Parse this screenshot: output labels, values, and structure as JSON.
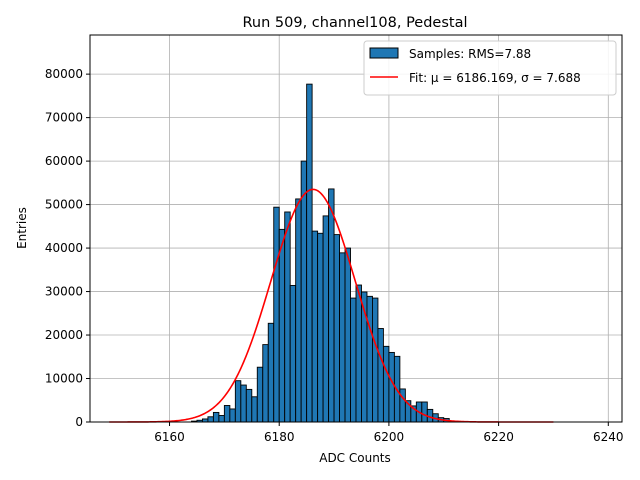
{
  "chart_data": {
    "type": "bar",
    "title": "Run 509, channel108, Pedestal",
    "xlabel": "ADC Counts",
    "ylabel": "Entries",
    "xlim": [
      6145.5,
      6242.5
    ],
    "ylim": [
      0,
      89000
    ],
    "xticks": [
      6160,
      6180,
      6200,
      6220,
      6240
    ],
    "yticks": [
      0,
      10000,
      20000,
      30000,
      40000,
      50000,
      60000,
      70000,
      80000
    ],
    "grid": true,
    "legend_position": "top-right",
    "series": [
      {
        "name": "Samples: RMS=7.88",
        "kind": "histogram",
        "color": "#1f77b4",
        "edge_color": "#000000",
        "bin_width": 1,
        "bin_starts": [
          6164,
          6165,
          6166,
          6167,
          6168,
          6169,
          6170,
          6171,
          6172,
          6173,
          6174,
          6175,
          6176,
          6177,
          6178,
          6179,
          6180,
          6181,
          6182,
          6183,
          6184,
          6185,
          6186,
          6187,
          6188,
          6189,
          6190,
          6191,
          6192,
          6193,
          6194,
          6195,
          6196,
          6197,
          6198,
          6199,
          6200,
          6201,
          6202,
          6203,
          6204,
          6205,
          6206,
          6207,
          6208,
          6209,
          6210,
          6211
        ],
        "values": [
          200,
          400,
          700,
          1200,
          2200,
          1500,
          3800,
          3000,
          9500,
          8500,
          7500,
          5800,
          12600,
          17800,
          22700,
          49400,
          44300,
          48300,
          31400,
          51300,
          60000,
          77700,
          43900,
          43400,
          47400,
          53600,
          43100,
          38900,
          40000,
          28500,
          31500,
          29900,
          28900,
          28500,
          21500,
          17400,
          16000,
          15100,
          7600,
          4900,
          3700,
          4600,
          4600,
          2900,
          1900,
          1000,
          800,
          100
        ]
      },
      {
        "name": "Fit: μ = 6186.169, σ = 7.688",
        "kind": "line",
        "color": "#ff0000",
        "function": "gaussian",
        "mu": 6186.169,
        "sigma": 7.688,
        "amplitude": 53500,
        "x_range": [
          6149,
          6230
        ]
      }
    ],
    "legend": [
      {
        "label": "Samples: RMS=7.88",
        "type": "patch"
      },
      {
        "label": "Fit: μ = 6186.169, σ = 7.688",
        "type": "line"
      }
    ]
  }
}
